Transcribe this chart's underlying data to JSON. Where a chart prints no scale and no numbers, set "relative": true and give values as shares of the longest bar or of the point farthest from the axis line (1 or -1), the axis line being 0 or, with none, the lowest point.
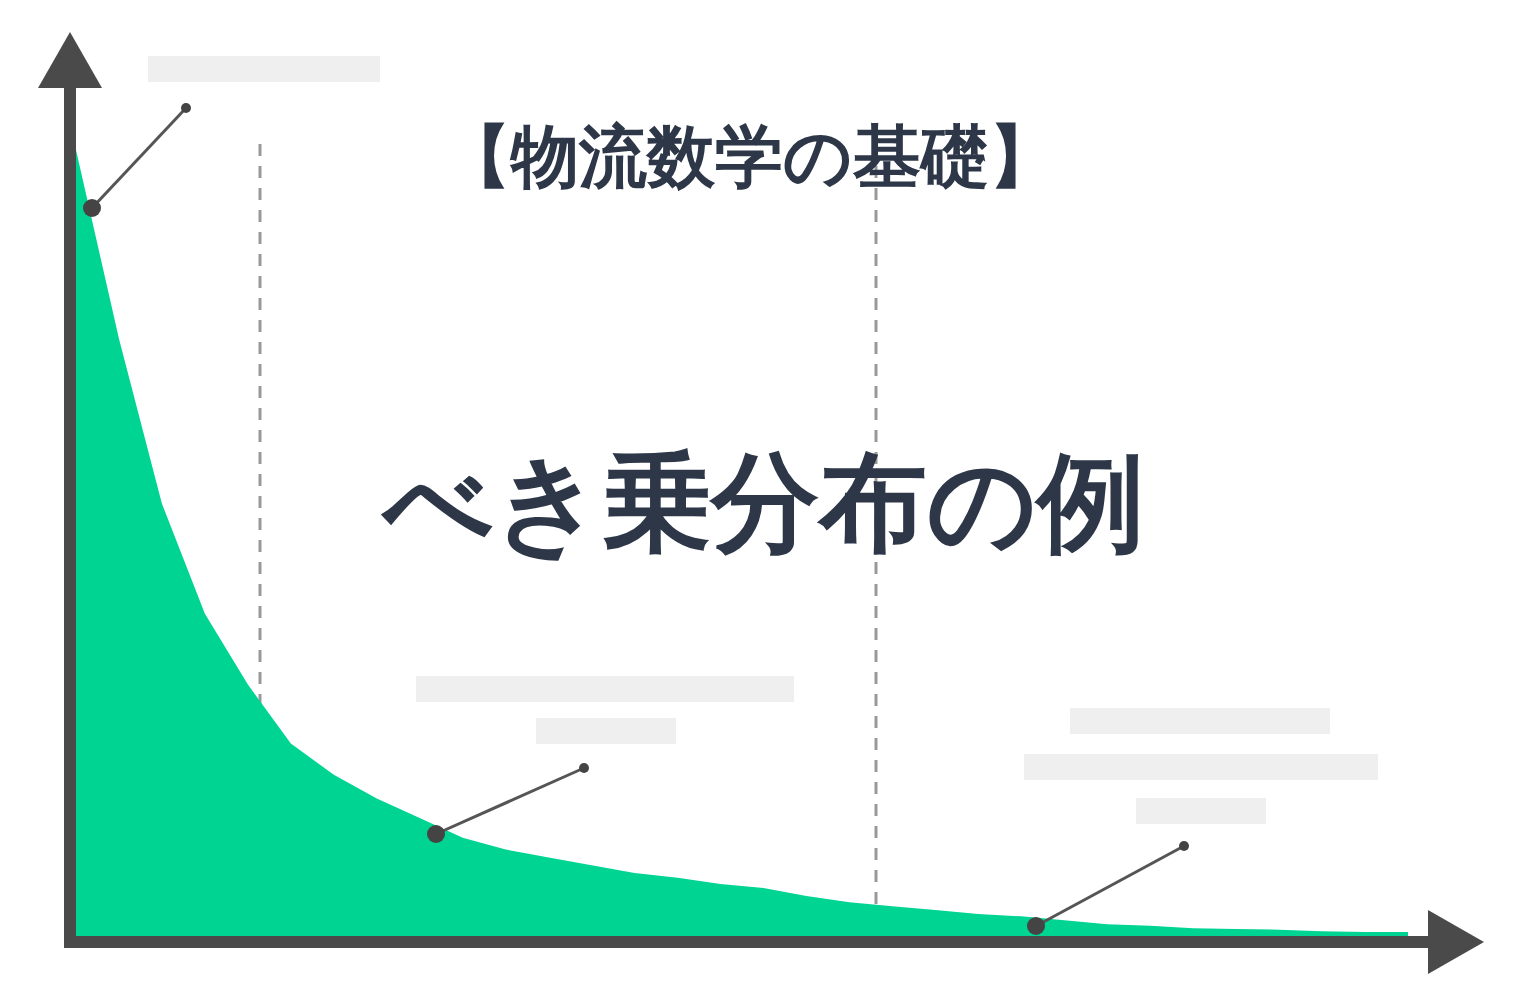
{
  "chart_data": {
    "type": "area",
    "relative": true,
    "title": "【物流数学の基礎】",
    "subtitle": "べき乗分布の例",
    "categories": [
      null,
      null,
      null,
      null,
      null,
      null,
      null,
      null,
      null,
      null,
      null,
      null,
      null,
      null,
      null,
      null,
      null,
      null,
      null,
      null,
      null,
      null,
      null,
      null,
      null,
      null,
      null,
      null,
      null,
      null,
      null,
      null
    ],
    "series": [
      {
        "color": "#00d492",
        "values": [
          1.0,
          0.76,
          0.55,
          0.41,
          0.32,
          0.245,
          0.205,
          0.175,
          0.15,
          0.125,
          0.11,
          0.1,
          0.09,
          0.08,
          0.074,
          0.066,
          0.061,
          0.051,
          0.043,
          0.038,
          0.033,
          0.028,
          0.025,
          0.02,
          0.015,
          0.013,
          0.01,
          0.009,
          0.008,
          0.006,
          0.005,
          0.005
        ]
      }
    ]
  }
}
